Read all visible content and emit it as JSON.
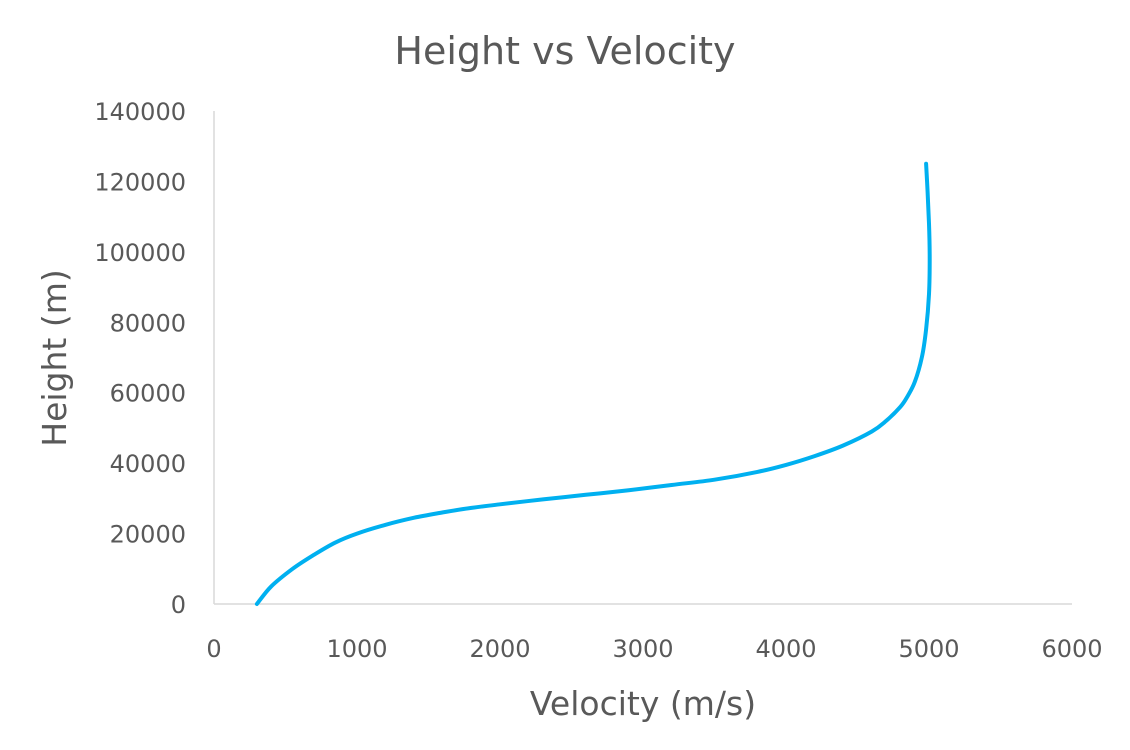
{
  "chart_data": {
    "type": "line",
    "title": "Height vs Velocity",
    "xlabel": "Velocity (m/s)",
    "ylabel": "Height (m)",
    "xlim": [
      0,
      6000
    ],
    "ylim": [
      0,
      140000
    ],
    "x_ticks": [
      "0",
      "1000",
      "2000",
      "3000",
      "4000",
      "5000",
      "6000"
    ],
    "y_ticks": [
      "0",
      "20000",
      "40000",
      "60000",
      "80000",
      "100000",
      "120000",
      "140000"
    ],
    "grid": false,
    "legend": "none",
    "series": [
      {
        "color": "#00b0f0",
        "x": [
          300,
          400,
          550,
          700,
          850,
          1000,
          1200,
          1400,
          1600,
          1800,
          2000,
          2300,
          2600,
          2900,
          3200,
          3500,
          3800,
          4000,
          4200,
          4400,
          4600,
          4700,
          4800,
          4850,
          4900,
          4950,
          4980,
          5000,
          5005,
          5000,
          4990,
          4980
        ],
        "y": [
          0,
          5000,
          10000,
          14000,
          17500,
          20000,
          22500,
          24500,
          26000,
          27300,
          28300,
          29700,
          31000,
          32300,
          33800,
          35300,
          37500,
          39500,
          42000,
          45000,
          49000,
          52000,
          56000,
          59000,
          63000,
          70000,
          78000,
          88000,
          98000,
          108000,
          117000,
          125000
        ]
      }
    ]
  }
}
